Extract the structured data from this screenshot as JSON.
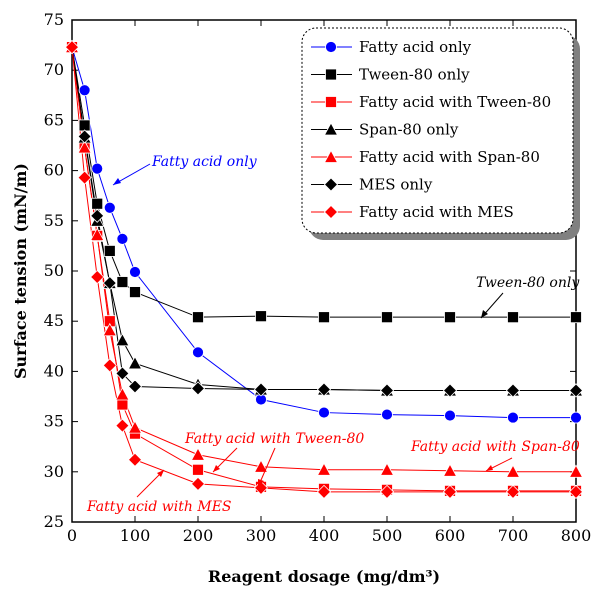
{
  "chart_data": {
    "type": "line",
    "xlabel": "Reagent dosage (mg/dm³)",
    "ylabel": "Surface tension (mN/m)",
    "xlim": [
      0,
      800
    ],
    "ylim": [
      25,
      75
    ],
    "xticks": [
      0,
      100,
      200,
      300,
      400,
      500,
      600,
      700,
      800
    ],
    "yticks": [
      25,
      30,
      35,
      40,
      45,
      50,
      55,
      60,
      65,
      70,
      75
    ],
    "grid": false,
    "legend_position": "top-right",
    "series": [
      {
        "name": "Fatty acid only",
        "color": "#0000ff",
        "marker": "circle",
        "x": [
          0,
          20,
          40,
          60,
          80,
          100,
          200,
          300,
          400,
          500,
          600,
          700,
          800
        ],
        "y": [
          72.3,
          68.0,
          60.2,
          56.3,
          53.2,
          49.9,
          41.9,
          37.2,
          35.9,
          35.7,
          35.6,
          35.4,
          35.4
        ]
      },
      {
        "name": "Tween-80 only",
        "color": "#000000",
        "marker": "square",
        "x": [
          0,
          20,
          40,
          60,
          80,
          100,
          200,
          300,
          400,
          500,
          600,
          700,
          800
        ],
        "y": [
          72.3,
          64.5,
          56.7,
          52.0,
          48.9,
          47.9,
          45.4,
          45.5,
          45.4,
          45.4,
          45.4,
          45.4,
          45.4
        ]
      },
      {
        "name": "Fatty acid with Tween-80",
        "color": "#ff0000",
        "marker": "square",
        "x": [
          0,
          20,
          40,
          60,
          80,
          100,
          200,
          300,
          400,
          500,
          600,
          700,
          800
        ],
        "y": [
          72.3,
          62.3,
          53.5,
          45.0,
          36.7,
          33.8,
          30.2,
          28.5,
          28.3,
          28.2,
          28.1,
          28.1,
          28.1
        ]
      },
      {
        "name": "Span-80 only",
        "color": "#000000",
        "marker": "triangle",
        "x": [
          0,
          20,
          40,
          60,
          80,
          100,
          200,
          300,
          400,
          500,
          600,
          700,
          800
        ],
        "y": [
          72.3,
          63.3,
          55.0,
          48.8,
          43.1,
          40.8,
          38.7,
          38.2,
          38.2,
          38.1,
          38.1,
          38.1,
          38.1
        ]
      },
      {
        "name": "Fatty acid with Span-80",
        "color": "#ff0000",
        "marker": "triangle",
        "x": [
          0,
          20,
          40,
          60,
          80,
          100,
          200,
          300,
          400,
          500,
          600,
          700,
          800
        ],
        "y": [
          72.3,
          62.3,
          53.6,
          44.1,
          37.7,
          34.4,
          31.7,
          30.5,
          30.2,
          30.2,
          30.1,
          30.0,
          30.0
        ]
      },
      {
        "name": "MES only",
        "color": "#000000",
        "marker": "diamond",
        "x": [
          0,
          20,
          40,
          60,
          80,
          100,
          200,
          300,
          400,
          500,
          600,
          700,
          800
        ],
        "y": [
          72.3,
          63.4,
          55.5,
          48.8,
          39.8,
          38.5,
          38.3,
          38.2,
          38.2,
          38.1,
          38.1,
          38.1,
          38.1
        ]
      },
      {
        "name": "Fatty acid with MES",
        "color": "#ff0000",
        "marker": "diamond",
        "x": [
          0,
          20,
          40,
          60,
          80,
          100,
          200,
          300,
          400,
          500,
          600,
          700,
          800
        ],
        "y": [
          72.3,
          59.3,
          49.4,
          40.6,
          34.6,
          31.2,
          28.8,
          28.4,
          28.0,
          28.0,
          28.0,
          28.0,
          28.0
        ]
      }
    ],
    "annotations": [
      {
        "text": "Fatty acid only",
        "color": "#0000ff"
      },
      {
        "text": "Tween-80 only",
        "color": "#000000"
      },
      {
        "text": "Fatty acid with Tween-80",
        "color": "#ff0000"
      },
      {
        "text": "Fatty acid with Span-80",
        "color": "#ff0000"
      },
      {
        "text": "Fatty acid with MES",
        "color": "#ff0000"
      }
    ]
  }
}
